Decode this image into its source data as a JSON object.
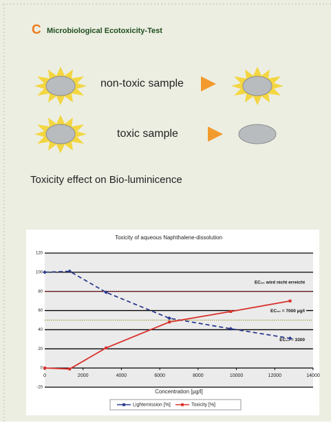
{
  "header": {
    "letter": "C",
    "title": "Microbiological Ecotoxicity-Test"
  },
  "rows": [
    {
      "label": "non-toxic sample"
    },
    {
      "label": "toxic sample"
    }
  ],
  "caption": "Toxicity effect on Bio-luminicence",
  "chart_data": {
    "type": "line",
    "title": "Toxicity of aqueous Naphthalene-dissolution",
    "x_label": "Concentration [µg/l]",
    "x": [
      0,
      1300,
      3200,
      6500,
      9700,
      12800
    ],
    "series": [
      {
        "name": "Lightemission [%]",
        "color": "#2b3a8c",
        "dashed": true,
        "values": [
          100,
          101,
          79,
          52,
          41,
          31
        ]
      },
      {
        "name": "Toxicity [%]",
        "color": "#d9302a",
        "dashed": false,
        "values": [
          0,
          -1,
          21,
          48,
          59,
          70
        ]
      }
    ],
    "xlim": [
      0,
      14000
    ],
    "xticks": [
      0,
      2000,
      4000,
      6000,
      8000,
      10000,
      12000,
      14000
    ],
    "ylim": [
      -20,
      120
    ],
    "yticks": [
      -20,
      0,
      20,
      40,
      60,
      80,
      100,
      120
    ],
    "grid": true,
    "annotations": [
      {
        "text": "EC₈₀ wird nicht erreicht",
        "y": 80,
        "color": "#c0202a"
      },
      {
        "text": "EC₅₀ = 7000 µg/l",
        "y": 50,
        "color": "#a0a040"
      },
      {
        "text": "EC₂₀ = 3300",
        "y": 20,
        "color": "#000000"
      }
    ]
  }
}
